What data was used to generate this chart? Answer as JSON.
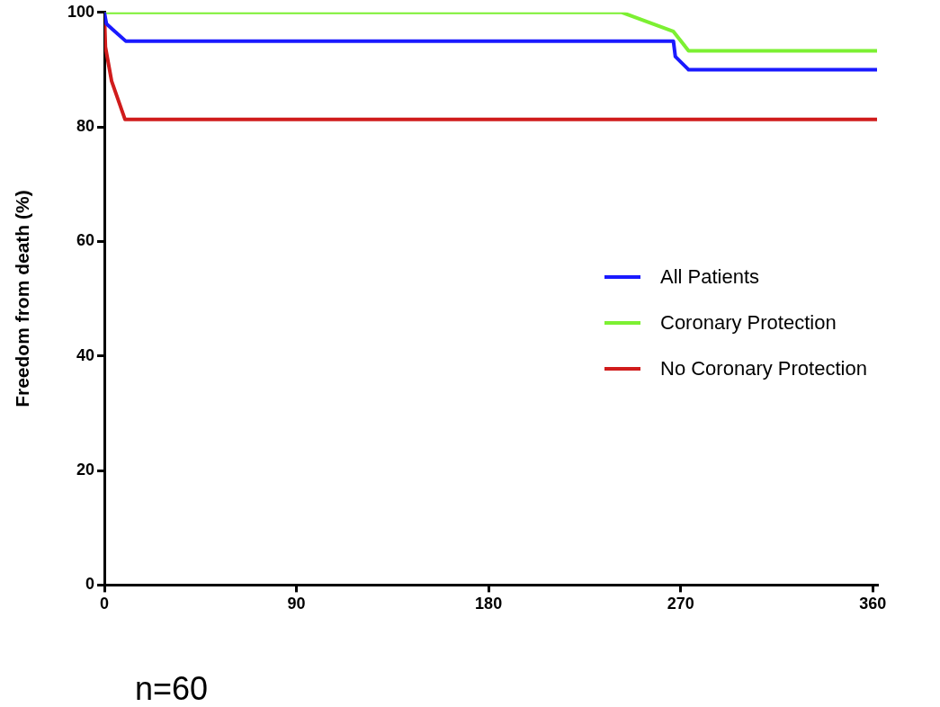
{
  "chart_data": {
    "type": "line",
    "ylabel": "Freedom from death (%)",
    "xlim": [
      0,
      362
    ],
    "xticks": [
      0,
      90,
      180,
      270,
      360
    ],
    "ylim": [
      0,
      100
    ],
    "yticks": [
      0,
      20,
      40,
      60,
      80,
      100
    ],
    "grid": false,
    "legend": "right",
    "marker": "none",
    "line_style": "solid",
    "series": [
      {
        "name": "All Patients",
        "color": "#1a1aff",
        "x": [
          0,
          1,
          4,
          10,
          266.6,
          267.5,
          273.7,
          362
        ],
        "values": [
          100,
          98,
          97,
          95,
          95,
          92.3,
          90,
          90
        ]
      },
      {
        "name": "Coronary Protection",
        "color": "#7cf032",
        "x": [
          0,
          242.5,
          266.5,
          273.7,
          362
        ],
        "values": [
          100,
          100,
          96.7,
          93.3,
          93.3
        ]
      },
      {
        "name": "No Coronary Protection",
        "color": "#d01c1c",
        "x": [
          0,
          0.5,
          3.4,
          9.7,
          362
        ],
        "values": [
          100,
          94,
          88,
          81.3,
          81.3
        ]
      }
    ],
    "annotations": [
      "n=60"
    ]
  }
}
